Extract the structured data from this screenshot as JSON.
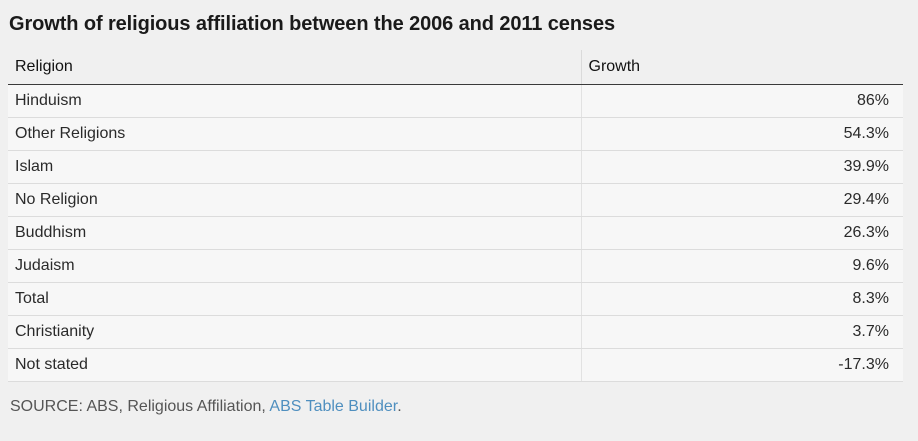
{
  "title": "Growth of religious affiliation between the 2006 and 2011 censes",
  "columns": [
    "Religion",
    "Growth"
  ],
  "chart_data": {
    "type": "table",
    "title": "Growth of religious affiliation between the 2006 and 2011 censes",
    "columns": [
      "Religion",
      "Growth"
    ],
    "rows": [
      {
        "religion": "Hinduism",
        "growth": "86%",
        "value": 86
      },
      {
        "religion": "Other Religions",
        "growth": "54.3%",
        "value": 54.3
      },
      {
        "religion": "Islam",
        "growth": "39.9%",
        "value": 39.9
      },
      {
        "religion": "No Religion",
        "growth": "29.4%",
        "value": 29.4
      },
      {
        "religion": "Buddhism",
        "growth": "26.3%",
        "value": 26.3
      },
      {
        "religion": "Judaism",
        "growth": "9.6%",
        "value": 9.6
      },
      {
        "religion": "Total",
        "growth": "8.3%",
        "value": 8.3
      },
      {
        "religion": "Christianity",
        "growth": "3.7%",
        "value": 3.7
      },
      {
        "religion": "Not stated",
        "growth": "-17.3%",
        "value": -17.3
      }
    ]
  },
  "source": {
    "prefix": "SOURCE: ABS, Religious Affiliation, ",
    "link": "ABS Table Builder",
    "suffix": "."
  },
  "colors": {
    "link": "#4f8fbf",
    "background": "#f0f0f0",
    "row_background": "#f7f7f7"
  }
}
